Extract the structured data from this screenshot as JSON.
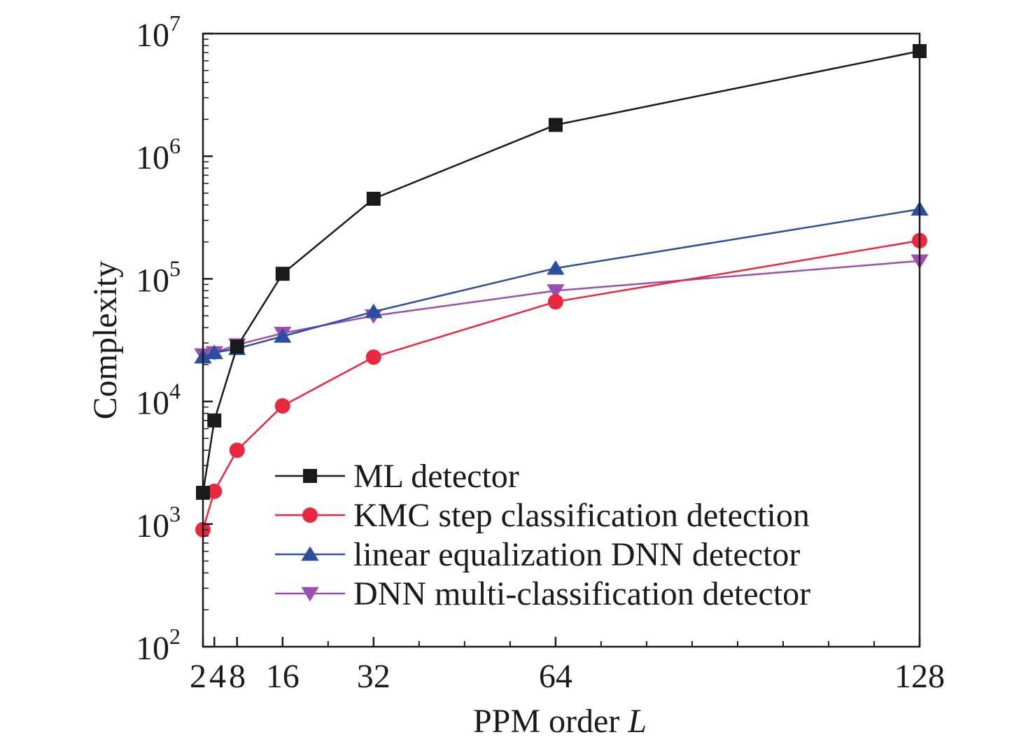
{
  "chart_data": {
    "type": "line",
    "xlabel": "PPM order",
    "xlabel_var": "L",
    "ylabel": "Complexity",
    "x": [
      2,
      4,
      8,
      16,
      32,
      64,
      128
    ],
    "x_ticks": [
      "2",
      "4",
      "8",
      "16",
      "32",
      "64",
      "128"
    ],
    "x_minor_ticks": [
      24,
      40,
      48,
      56,
      72,
      80,
      88,
      96,
      104,
      112,
      120
    ],
    "xlim": [
      2,
      128
    ],
    "yscale": "log",
    "ylim": [
      100,
      10000000
    ],
    "y_ticks": [
      {
        "base": "10",
        "exp": "2",
        "value": 100
      },
      {
        "base": "10",
        "exp": "3",
        "value": 1000
      },
      {
        "base": "10",
        "exp": "4",
        "value": 10000
      },
      {
        "base": "10",
        "exp": "5",
        "value": 100000
      },
      {
        "base": "10",
        "exp": "6",
        "value": 1000000
      },
      {
        "base": "10",
        "exp": "7",
        "value": 10000000
      }
    ],
    "grid": false,
    "legend_position": "bottom-right",
    "series": [
      {
        "name": "ML detector",
        "color": "#1a1a1a",
        "marker": "square",
        "values": [
          1800,
          7000,
          28000,
          110000,
          450000,
          1800000,
          7200000
        ]
      },
      {
        "name": "KMC step classification detection",
        "color": "#e8283e",
        "marker": "circle",
        "values": [
          900,
          1850,
          4000,
          9200,
          23000,
          65000,
          205000
        ]
      },
      {
        "name": "linear equalization DNN detector",
        "color": "#2b4ea0",
        "marker": "triangle-up",
        "values": [
          23000,
          25000,
          27000,
          34000,
          54000,
          122000,
          370000
        ]
      },
      {
        "name": "DNN multi-classification detector",
        "color": "#9b4fb0",
        "marker": "triangle-down",
        "values": [
          24000,
          25000,
          29000,
          36000,
          50000,
          80000,
          140000
        ]
      }
    ]
  }
}
